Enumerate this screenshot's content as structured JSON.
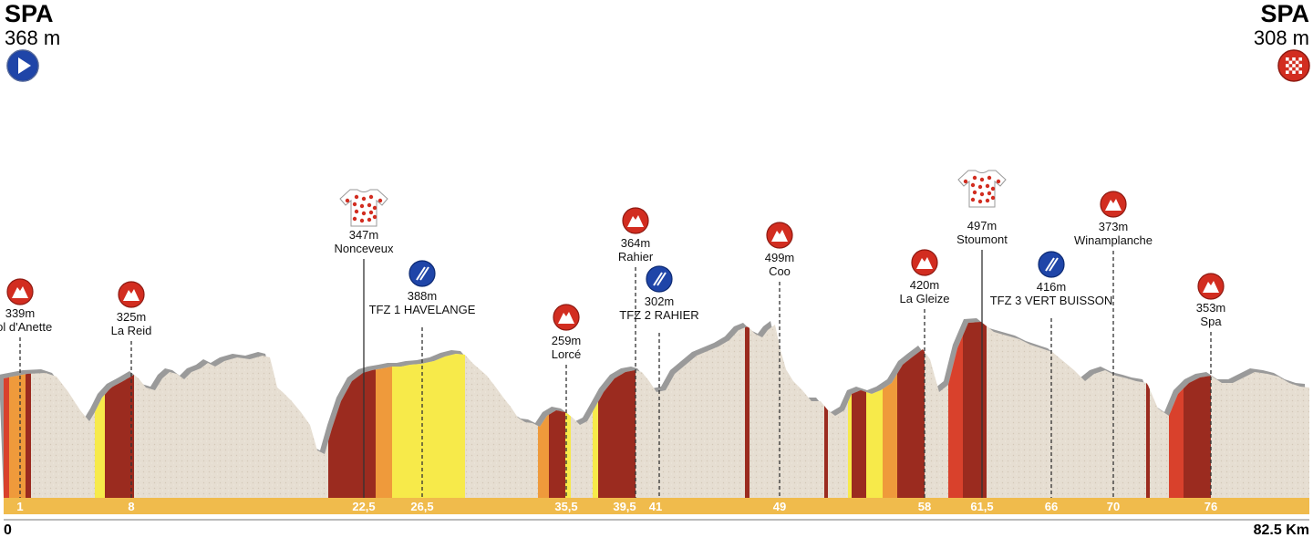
{
  "start": {
    "name": "SPA",
    "altitude": "368 m"
  },
  "finish": {
    "name": "SPA",
    "altitude": "308 m"
  },
  "scale": {
    "start_label": "0",
    "end_label": "82.5 Km",
    "length_km": 82.5
  },
  "icons": {
    "start": "play-icon",
    "finish": "checkered-flag-icon",
    "climb": "mountain-icon",
    "kom": "polka-dot-jersey-icon",
    "timing": "timing-zone-icon"
  },
  "colors": {
    "road_band": "#f0bb4c",
    "terrain": "#e5ddd1",
    "terrain_shadow": "#9a9a9a",
    "climb_dark": "#9b2b1f",
    "climb_red": "#d9412c",
    "climb_orange": "#ef9a3b",
    "climb_yellow": "#f7ea4a",
    "icon_red": "#d22d20",
    "icon_blue": "#1f45a8"
  },
  "km_marks": [
    "1",
    "8",
    "22,5",
    "26,5",
    "35,5",
    "39,5",
    "41",
    "49",
    "58",
    "61,5",
    "66",
    "70",
    "76"
  ],
  "points": [
    {
      "type": "climb",
      "km": 1,
      "name": "Col d'Anette",
      "altitude": "339m"
    },
    {
      "type": "climb",
      "km": 8,
      "name": "La Reid",
      "altitude": "325m"
    },
    {
      "type": "kom",
      "km": 22.5,
      "name": "Nonceveux",
      "altitude": "347m"
    },
    {
      "type": "timing",
      "km": 26.5,
      "name": "TFZ 1 HAVELANGE",
      "altitude": "388m"
    },
    {
      "type": "climb",
      "km": 35.5,
      "name": "Lorcé",
      "altitude": "259m"
    },
    {
      "type": "climb",
      "km": 39.5,
      "name": "Rahier",
      "altitude": "364m"
    },
    {
      "type": "timing",
      "km": 41,
      "name": "TFZ 2 RAHIER",
      "altitude": "302m"
    },
    {
      "type": "climb",
      "km": 49,
      "name": "Coo",
      "altitude": "499m"
    },
    {
      "type": "climb",
      "km": 58,
      "name": "La Gleize",
      "altitude": "420m"
    },
    {
      "type": "kom",
      "km": 61.5,
      "name": "Stoumont",
      "altitude": "497m"
    },
    {
      "type": "timing",
      "km": 66,
      "name": "TFZ 3 VERT BUISSON",
      "altitude": "416m"
    },
    {
      "type": "climb",
      "km": 70,
      "name": "Winamplanche",
      "altitude": "373m"
    },
    {
      "type": "climb",
      "km": 76,
      "name": "Spa",
      "altitude": "353m"
    }
  ]
}
